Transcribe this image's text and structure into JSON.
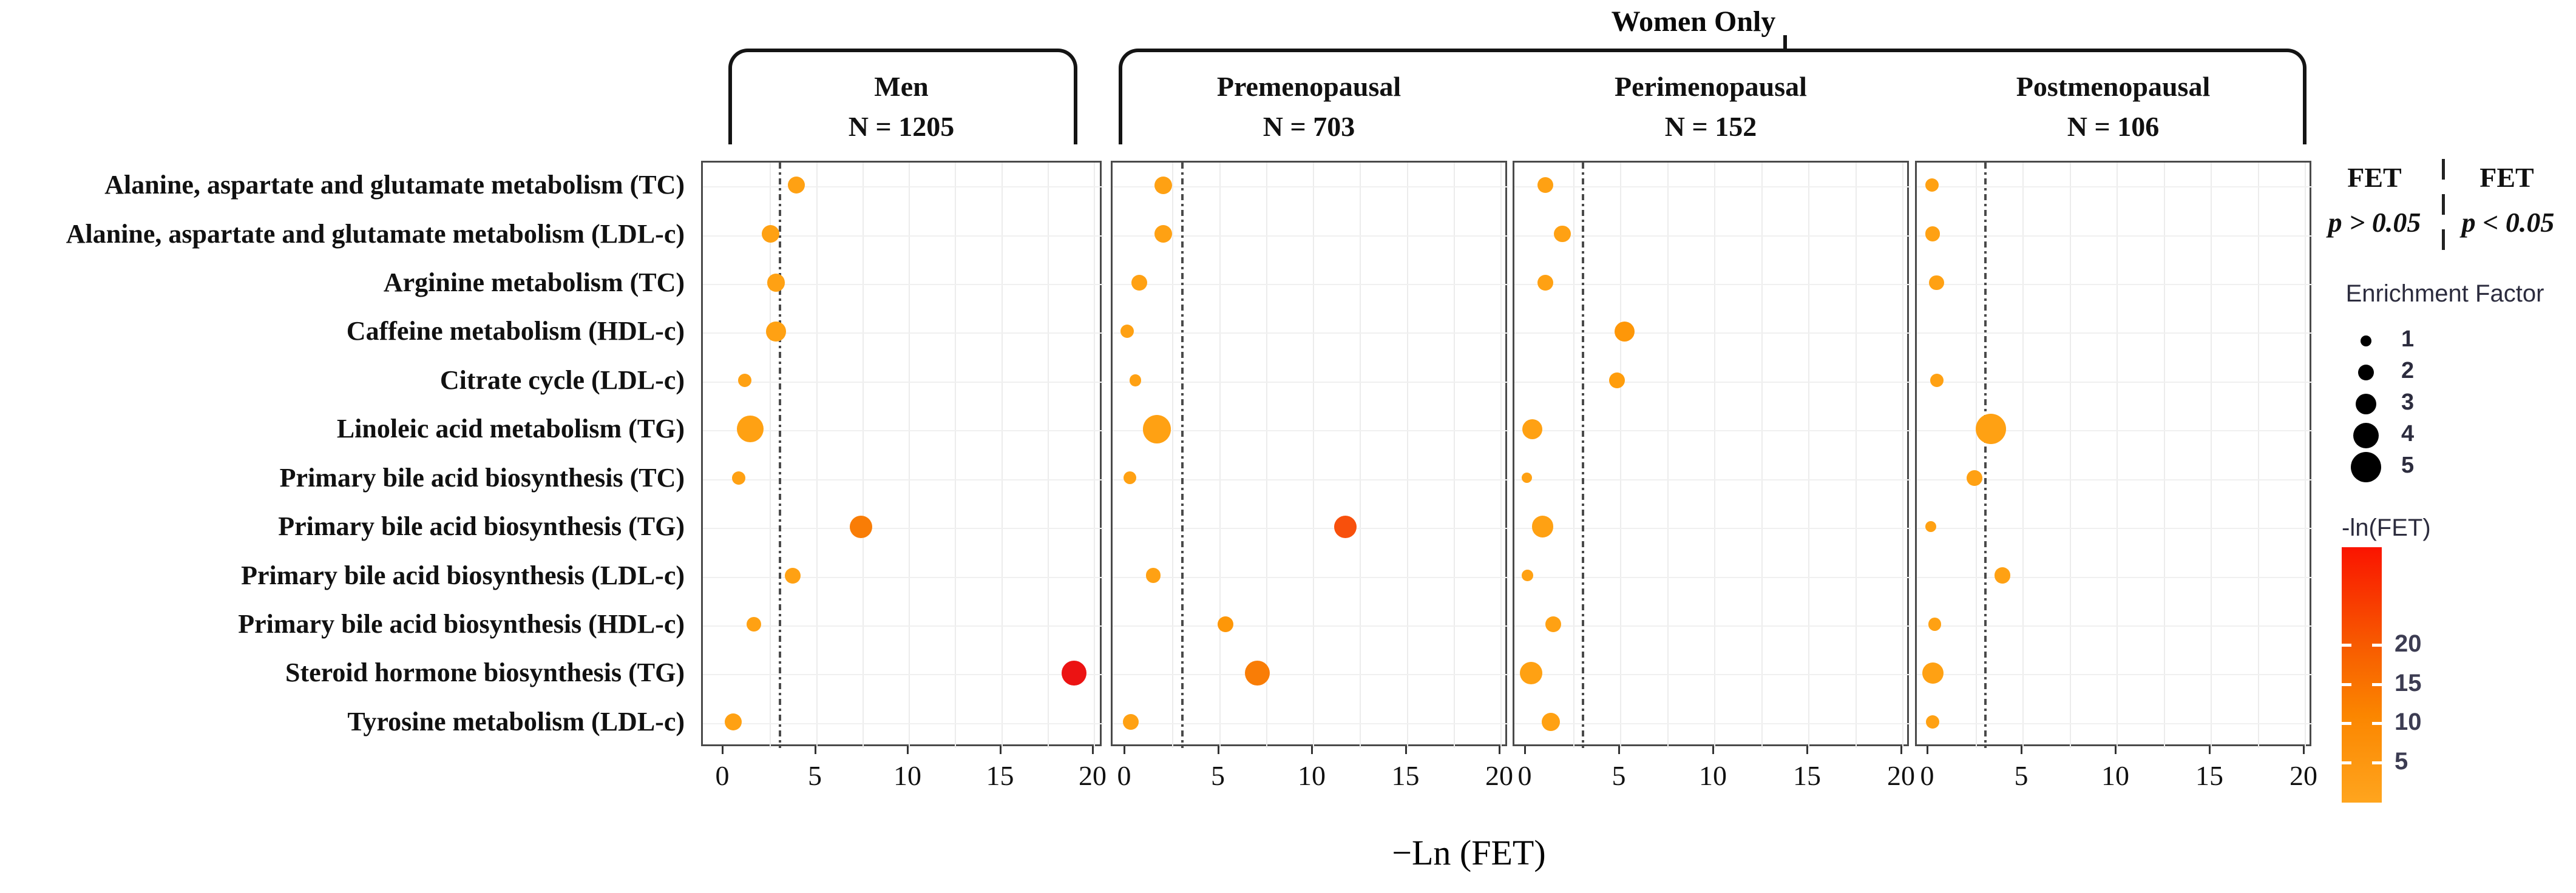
{
  "header": {
    "women_only": "Women Only",
    "groups": [
      {
        "label": "Men",
        "n": "N = 1205"
      },
      {
        "label": "Premenopausal",
        "n": "N = 703"
      },
      {
        "label": "Perimenopausal",
        "n": "N = 152"
      },
      {
        "label": "Postmenopausal",
        "n": "N = 106"
      }
    ]
  },
  "pathways": [
    "Alanine, aspartate and glutamate metabolism (TC)",
    "Alanine, aspartate and glutamate metabolism (LDL-c)",
    "Arginine metabolism (TC)",
    "Caffeine metabolism (HDL-c)",
    "Citrate cycle (LDL-c)",
    "Linoleic acid metabolism (TG)",
    "Primary bile acid biosynthesis (TC)",
    "Primary bile acid biosynthesis (TG)",
    "Primary bile acid biosynthesis (LDL-c)",
    "Primary bile acid biosynthesis (HDL-c)",
    "Steroid hormone biosynthesis (TG)",
    "Tyrosine metabolism (LDL-c)"
  ],
  "axis": {
    "xlabel": "−Ln (FET)",
    "ticks": [
      0,
      5,
      10,
      15,
      20
    ],
    "xlim": [
      0,
      20
    ],
    "significance_line_x": 3
  },
  "legend": {
    "fet_nonsig": {
      "title": "FET",
      "sub": "p > 0.05"
    },
    "fet_sig": {
      "title": "FET",
      "sub": "p < 0.05"
    },
    "enrichment_title": "Enrichment Factor",
    "enrichment_sizes": [
      1,
      2,
      3,
      4,
      5
    ],
    "colorbar_title": "-ln(FET)",
    "colorbar_ticks": [
      20,
      15,
      10,
      5
    ],
    "colorbar_top_color": "#FA1400",
    "colorbar_bottom_color": "#FFA51E",
    "dot_base_color": "#FFA113",
    "significant_color": "#EC1313"
  },
  "chart_data": {
    "type": "scatter",
    "title": "Pathway enrichment by group",
    "xlabel": "−Ln (FET)",
    "x_range": [
      0,
      20
    ],
    "x_ticks": [
      0,
      5,
      10,
      15,
      20
    ],
    "dashed_line_x": 3,
    "grid": true,
    "panels": [
      {
        "name": "Men",
        "n_label": "N = 1205",
        "points": [
          {
            "pathway": "Alanine, aspartate and glutamate metabolism (TC)",
            "x": 4.0,
            "enrichment_factor": 2.3
          },
          {
            "pathway": "Alanine, aspartate and glutamate metabolism (LDL-c)",
            "x": 2.6,
            "enrichment_factor": 2.4
          },
          {
            "pathway": "Arginine metabolism (TC)",
            "x": 2.9,
            "enrichment_factor": 2.4
          },
          {
            "pathway": "Caffeine metabolism (HDL-c)",
            "x": 2.9,
            "enrichment_factor": 2.8
          },
          {
            "pathway": "Citrate cycle (LDL-c)",
            "x": 1.2,
            "enrichment_factor": 1.5
          },
          {
            "pathway": "Linoleic acid metabolism (TG)",
            "x": 1.5,
            "enrichment_factor": 4.3
          },
          {
            "pathway": "Primary bile acid biosynthesis (TC)",
            "x": 0.9,
            "enrichment_factor": 1.5
          },
          {
            "pathway": "Primary bile acid biosynthesis (TG)",
            "x": 7.5,
            "enrichment_factor": 3.4,
            "color": "#F97D06"
          },
          {
            "pathway": "Primary bile acid biosynthesis (LDL-c)",
            "x": 3.8,
            "enrichment_factor": 2.0
          },
          {
            "pathway": "Primary bile acid biosynthesis (HDL-c)",
            "x": 1.7,
            "enrichment_factor": 1.8
          },
          {
            "pathway": "Steroid hormone biosynthesis (TG)",
            "x": 19.0,
            "enrichment_factor": 3.9,
            "color": "#EC1313"
          },
          {
            "pathway": "Tyrosine metabolism (LDL-c)",
            "x": 0.6,
            "enrichment_factor": 2.3
          }
        ]
      },
      {
        "name": "Premenopausal",
        "n_label": "N = 703",
        "points": [
          {
            "pathway": "Alanine, aspartate and glutamate metabolism (TC)",
            "x": 2.1,
            "enrichment_factor": 2.4
          },
          {
            "pathway": "Alanine, aspartate and glutamate metabolism (LDL-c)",
            "x": 2.1,
            "enrichment_factor": 2.4
          },
          {
            "pathway": "Arginine metabolism (TC)",
            "x": 0.8,
            "enrichment_factor": 2.0
          },
          {
            "pathway": "Caffeine metabolism (HDL-c)",
            "x": 0.15,
            "enrichment_factor": 1.5
          },
          {
            "pathway": "Citrate cycle (LDL-c)",
            "x": 0.6,
            "enrichment_factor": 1.2
          },
          {
            "pathway": "Linoleic acid metabolism (TG)",
            "x": 1.75,
            "enrichment_factor": 4.6
          },
          {
            "pathway": "Primary bile acid biosynthesis (TC)",
            "x": 0.3,
            "enrichment_factor": 1.4
          },
          {
            "pathway": "Primary bile acid biosynthesis (TG)",
            "x": 11.8,
            "enrichment_factor": 3.4,
            "color": "#F8500C"
          },
          {
            "pathway": "Primary bile acid biosynthesis (LDL-c)",
            "x": 1.55,
            "enrichment_factor": 1.8
          },
          {
            "pathway": "Primary bile acid biosynthesis (HDL-c)",
            "x": 5.4,
            "enrichment_factor": 2.0,
            "color": "#FE9708"
          },
          {
            "pathway": "Steroid hormone biosynthesis (TG)",
            "x": 7.1,
            "enrichment_factor": 3.9,
            "color": "#F97D06"
          },
          {
            "pathway": "Tyrosine metabolism (LDL-c)",
            "x": 0.35,
            "enrichment_factor": 2.0
          }
        ]
      },
      {
        "name": "Perimenopausal",
        "n_label": "N = 152",
        "points": [
          {
            "pathway": "Alanine, aspartate and glutamate metabolism (TC)",
            "x": 1.1,
            "enrichment_factor": 2.0
          },
          {
            "pathway": "Alanine, aspartate and glutamate metabolism (LDL-c)",
            "x": 2.0,
            "enrichment_factor": 2.2
          },
          {
            "pathway": "Arginine metabolism (TC)",
            "x": 1.1,
            "enrichment_factor": 2.0
          },
          {
            "pathway": "Caffeine metabolism (HDL-c)",
            "x": 5.3,
            "enrichment_factor": 2.9,
            "color": "#FE9708"
          },
          {
            "pathway": "Citrate cycle (LDL-c)",
            "x": 4.9,
            "enrichment_factor": 2.0,
            "color": "#FF9D0C"
          },
          {
            "pathway": "Linoleic acid metabolism (TG)",
            "x": 0.4,
            "enrichment_factor": 2.9
          },
          {
            "pathway": "Primary bile acid biosynthesis (TC)",
            "x": 0.1,
            "enrichment_factor": 0.9
          },
          {
            "pathway": "Primary bile acid biosynthesis (TG)",
            "x": 0.95,
            "enrichment_factor": 3.2
          },
          {
            "pathway": "Primary bile acid biosynthesis (LDL-c)",
            "x": 0.15,
            "enrichment_factor": 1.1
          },
          {
            "pathway": "Primary bile acid biosynthesis (HDL-c)",
            "x": 1.5,
            "enrichment_factor": 2.0
          },
          {
            "pathway": "Steroid hormone biosynthesis (TG)",
            "x": 0.35,
            "enrichment_factor": 3.4
          },
          {
            "pathway": "Tyrosine metabolism (LDL-c)",
            "x": 1.4,
            "enrichment_factor": 2.5
          }
        ]
      },
      {
        "name": "Postmenopausal",
        "n_label": "N = 106",
        "points": [
          {
            "pathway": "Alanine, aspartate and glutamate metabolism (TC)",
            "x": 0.25,
            "enrichment_factor": 1.5
          },
          {
            "pathway": "Alanine, aspartate and glutamate metabolism (LDL-c)",
            "x": 0.3,
            "enrichment_factor": 1.8
          },
          {
            "pathway": "Arginine metabolism (TC)",
            "x": 0.5,
            "enrichment_factor": 1.8
          },
          {
            "pathway": "Citrate cycle (LDL-c)",
            "x": 0.5,
            "enrichment_factor": 1.5
          },
          {
            "pathway": "Linoleic acid metabolism (TG)",
            "x": 3.4,
            "enrichment_factor": 5.0
          },
          {
            "pathway": "Primary bile acid biosynthesis (TC)",
            "x": 2.5,
            "enrichment_factor": 2.0
          },
          {
            "pathway": "Primary bile acid biosynthesis (TG)",
            "x": 0.2,
            "enrichment_factor": 1.0
          },
          {
            "pathway": "Primary bile acid biosynthesis (LDL-c)",
            "x": 4.0,
            "enrichment_factor": 2.1
          },
          {
            "pathway": "Primary bile acid biosynthesis (HDL-c)",
            "x": 0.4,
            "enrichment_factor": 1.4
          },
          {
            "pathway": "Steroid hormone biosynthesis (TG)",
            "x": 0.3,
            "enrichment_factor": 3.1
          },
          {
            "pathway": "Tyrosine metabolism (LDL-c)",
            "x": 0.3,
            "enrichment_factor": 1.5
          }
        ]
      }
    ]
  }
}
